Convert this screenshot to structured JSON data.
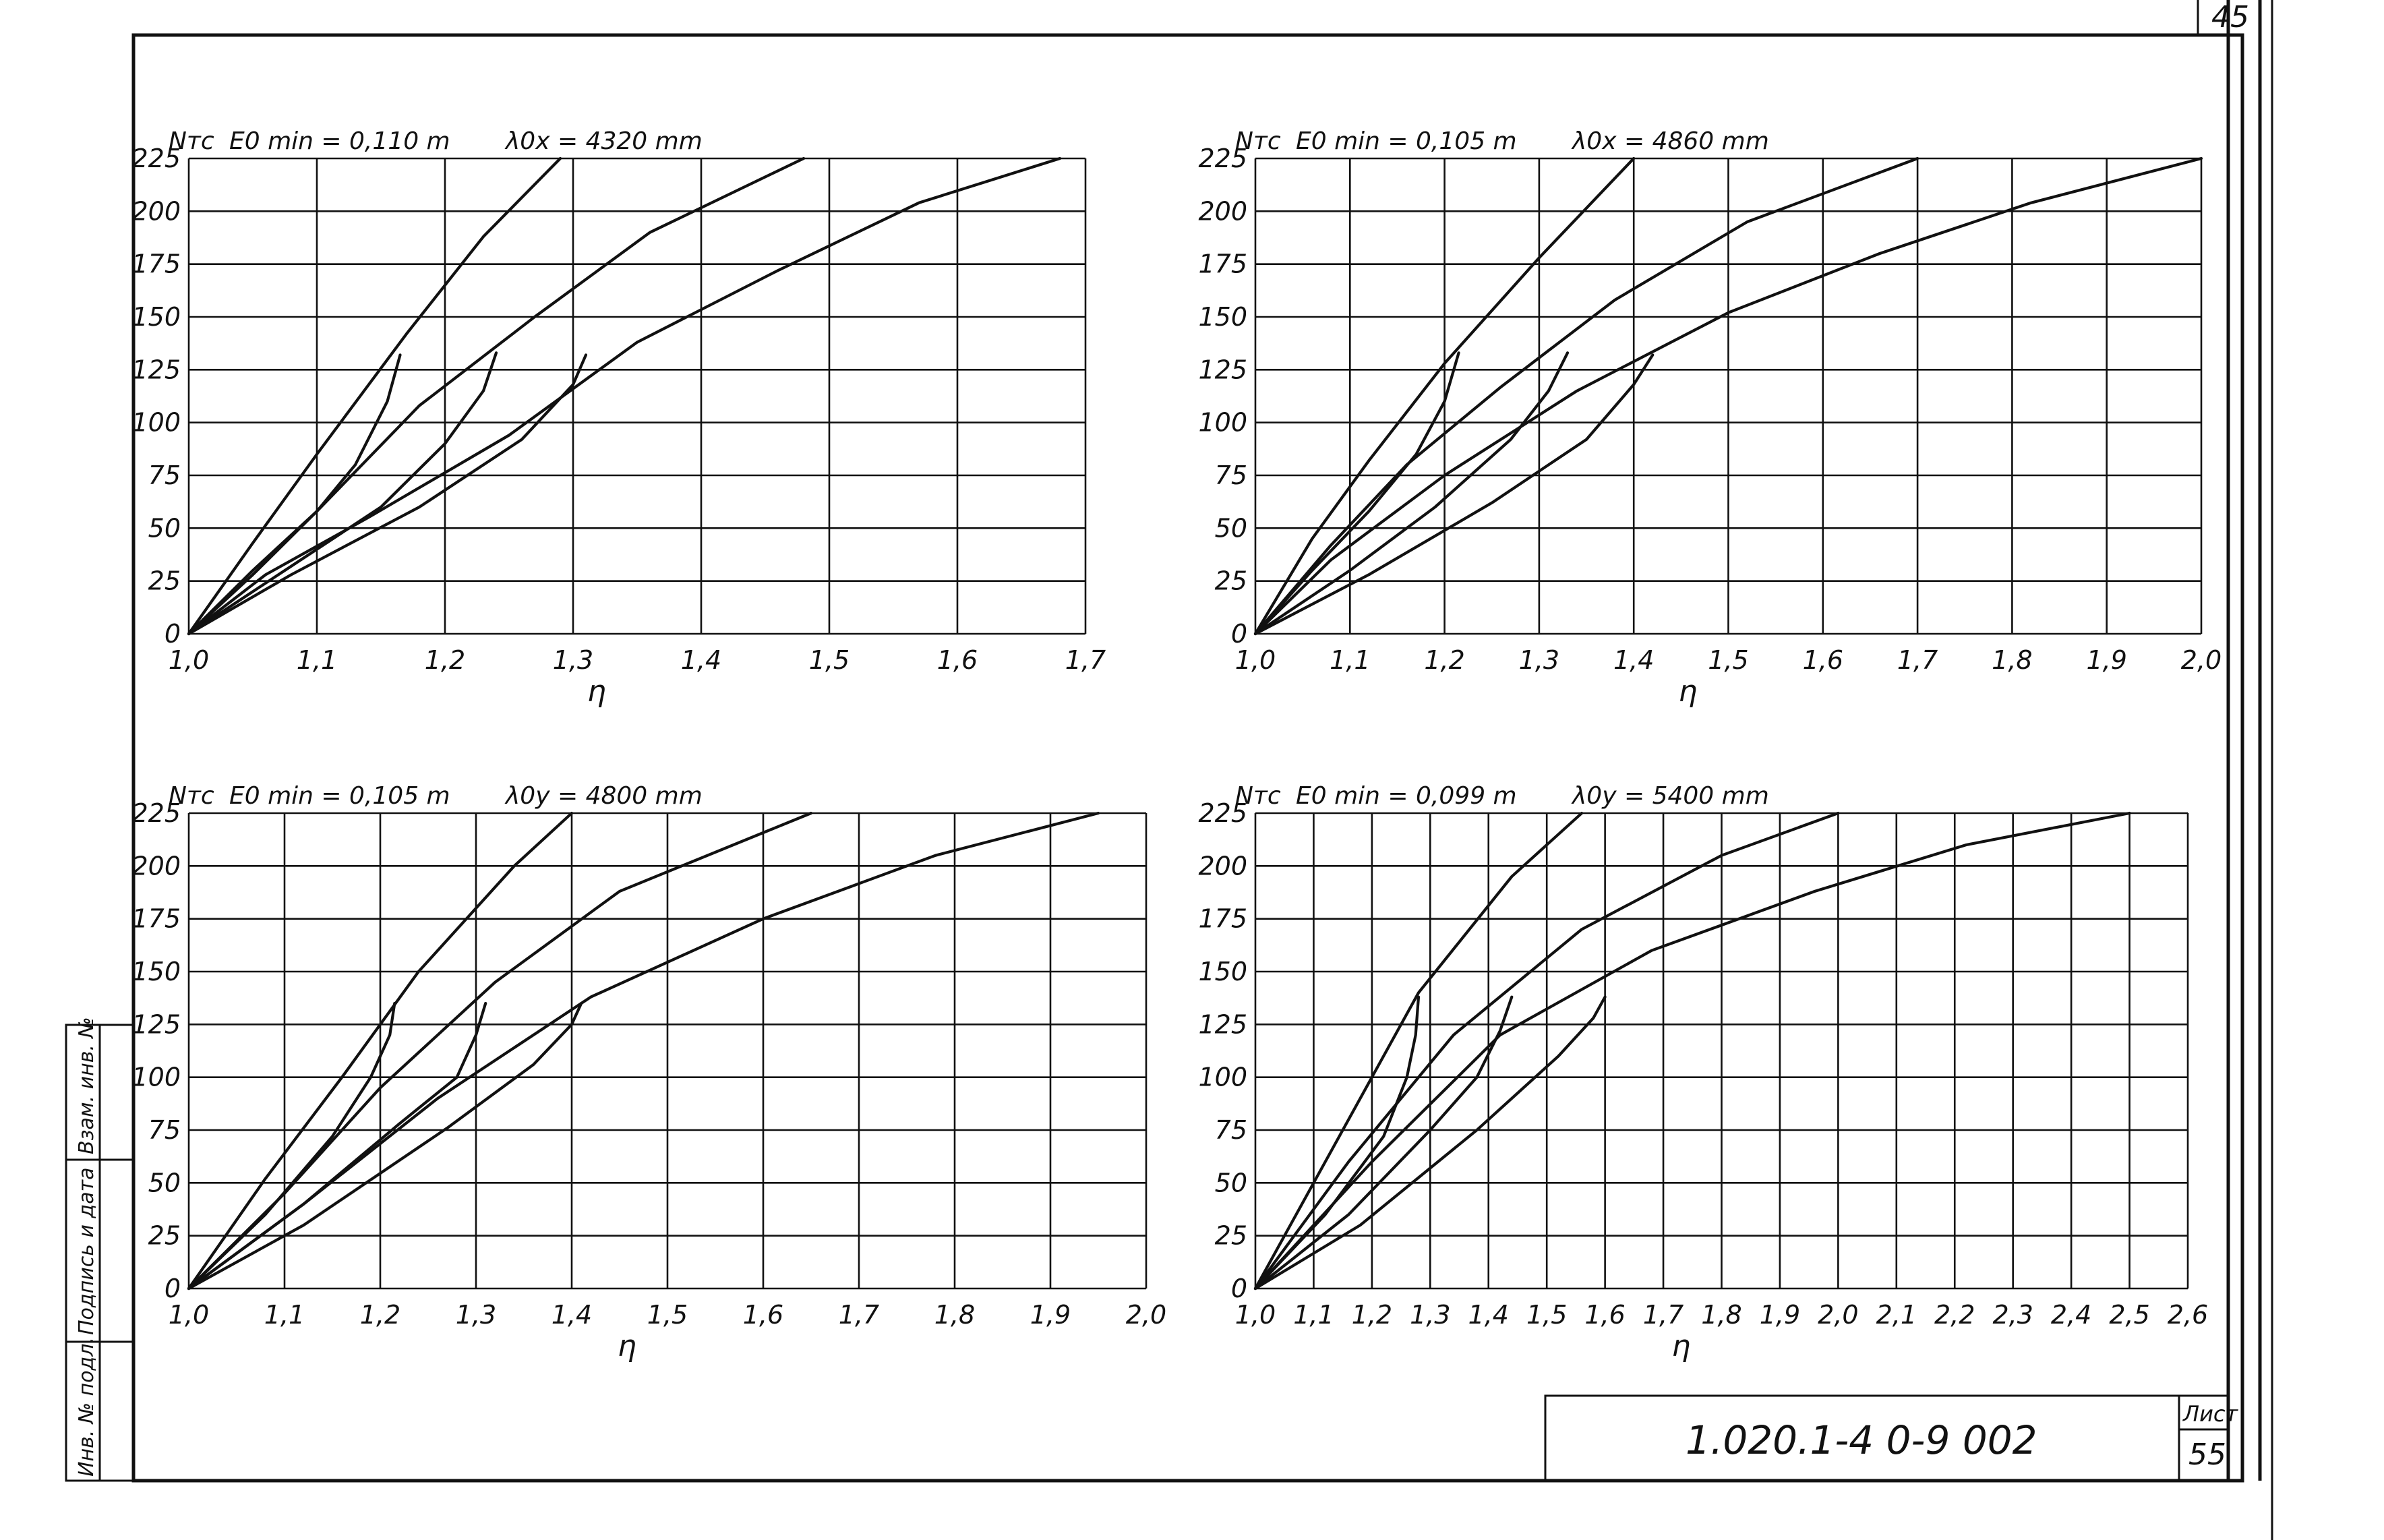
{
  "drawing": {
    "code": "1.020.1-4 0-9 002",
    "sheet_label": "Лист",
    "sheet_number": "55",
    "corner_number": "45",
    "side_stamp": [
      "Инв. № подл.",
      "Подпись и дата",
      "Взам. инв. №"
    ]
  },
  "chart_data": [
    {
      "type": "line",
      "y_title": "Nтс",
      "ecc_label": "E0 min = 0,110 m",
      "len_label": "λ0x = 4320 mm",
      "xlabel": "η",
      "xlim": [
        1.0,
        1.7
      ],
      "ylim": [
        0,
        225
      ],
      "x_ticks": [
        "1,0",
        "1,1",
        "1,2",
        "1,3",
        "1,4",
        "1,5",
        "1,6",
        "1,7"
      ],
      "y_ticks": [
        "0",
        "25",
        "50",
        "75",
        "100",
        "125",
        "150",
        "175",
        "200",
        "225"
      ],
      "grid": true,
      "series": [
        {
          "x": [
            1.0,
            1.05,
            1.1,
            1.17,
            1.23,
            1.29
          ],
          "y": [
            0,
            43,
            85,
            142,
            188,
            225
          ]
        },
        {
          "x": [
            1.0,
            1.05,
            1.1,
            1.18,
            1.27,
            1.36,
            1.48
          ],
          "y": [
            0,
            30,
            58,
            108,
            150,
            190,
            225
          ]
        },
        {
          "x": [
            1.0,
            1.06,
            1.14,
            1.25,
            1.35,
            1.46,
            1.57,
            1.68
          ],
          "y": [
            0,
            28,
            55,
            94,
            138,
            172,
            204,
            225
          ]
        },
        {
          "x": [
            1.0,
            1.05,
            1.1,
            1.13,
            1.155,
            1.165
          ],
          "y": [
            0,
            28,
            58,
            80,
            110,
            132
          ]
        },
        {
          "x": [
            1.0,
            1.07,
            1.15,
            1.2,
            1.23,
            1.24
          ],
          "y": [
            0,
            28,
            60,
            90,
            115,
            133
          ]
        },
        {
          "x": [
            1.0,
            1.08,
            1.18,
            1.26,
            1.3,
            1.31
          ],
          "y": [
            0,
            28,
            60,
            92,
            118,
            132
          ]
        }
      ]
    },
    {
      "type": "line",
      "y_title": "Nтс",
      "ecc_label": "E0 min = 0,105 m",
      "len_label": "λ0x = 4860 mm",
      "xlabel": "η",
      "xlim": [
        1.0,
        2.0
      ],
      "ylim": [
        0,
        225
      ],
      "x_ticks": [
        "1,0",
        "1,1",
        "1,2",
        "1,3",
        "1,4",
        "1,5",
        "1,6",
        "1,7",
        "1,8",
        "1,9",
        "2,0"
      ],
      "y_ticks": [
        "0",
        "25",
        "50",
        "75",
        "100",
        "125",
        "150",
        "175",
        "200",
        "225"
      ],
      "grid": true,
      "series": [
        {
          "x": [
            1.0,
            1.06,
            1.12,
            1.2,
            1.3,
            1.4
          ],
          "y": [
            0,
            45,
            82,
            128,
            178,
            225
          ]
        },
        {
          "x": [
            1.0,
            1.08,
            1.16,
            1.26,
            1.38,
            1.52,
            1.7
          ],
          "y": [
            0,
            42,
            80,
            117,
            158,
            195,
            225
          ]
        },
        {
          "x": [
            1.0,
            1.08,
            1.2,
            1.34,
            1.5,
            1.66,
            1.82,
            2.0
          ],
          "y": [
            0,
            35,
            75,
            115,
            152,
            180,
            204,
            225
          ]
        },
        {
          "x": [
            1.0,
            1.06,
            1.12,
            1.17,
            1.2,
            1.215
          ],
          "y": [
            0,
            30,
            58,
            85,
            110,
            133
          ]
        },
        {
          "x": [
            1.0,
            1.1,
            1.19,
            1.27,
            1.31,
            1.33
          ],
          "y": [
            0,
            30,
            60,
            92,
            115,
            133
          ]
        },
        {
          "x": [
            1.0,
            1.12,
            1.25,
            1.35,
            1.4,
            1.42
          ],
          "y": [
            0,
            28,
            62,
            92,
            118,
            132
          ]
        }
      ]
    },
    {
      "type": "line",
      "y_title": "Nтс",
      "ecc_label": "E0 min = 0,105 m",
      "len_label": "λ0y = 4800 mm",
      "xlabel": "η",
      "xlim": [
        1.0,
        2.0
      ],
      "ylim": [
        0,
        225
      ],
      "x_ticks": [
        "1,0",
        "1,1",
        "1,2",
        "1,3",
        "1,4",
        "1,5",
        "1,6",
        "1,7",
        "1,8",
        "1,9",
        "2,0"
      ],
      "y_ticks": [
        "0",
        "25",
        "50",
        "75",
        "100",
        "125",
        "150",
        "175",
        "200",
        "225"
      ],
      "grid": true,
      "series": [
        {
          "x": [
            1.0,
            1.08,
            1.16,
            1.24,
            1.34,
            1.4
          ],
          "y": [
            0,
            52,
            100,
            150,
            200,
            225
          ]
        },
        {
          "x": [
            1.0,
            1.1,
            1.2,
            1.32,
            1.45,
            1.65
          ],
          "y": [
            0,
            45,
            95,
            145,
            188,
            225
          ]
        },
        {
          "x": [
            1.0,
            1.12,
            1.26,
            1.42,
            1.6,
            1.78,
            1.95
          ],
          "y": [
            0,
            40,
            90,
            138,
            175,
            205,
            225
          ]
        },
        {
          "x": [
            1.0,
            1.08,
            1.15,
            1.19,
            1.21,
            1.215
          ],
          "y": [
            0,
            35,
            72,
            100,
            120,
            135
          ]
        },
        {
          "x": [
            1.0,
            1.12,
            1.22,
            1.28,
            1.3,
            1.31
          ],
          "y": [
            0,
            40,
            78,
            100,
            120,
            135
          ]
        },
        {
          "x": [
            1.0,
            1.12,
            1.27,
            1.36,
            1.4,
            1.41
          ],
          "y": [
            0,
            30,
            76,
            106,
            125,
            135
          ]
        }
      ]
    },
    {
      "type": "line",
      "y_title": "Nтс",
      "ecc_label": "E0 min = 0,099 m",
      "len_label": "λ0y = 5400 mm",
      "xlabel": "η",
      "xlim": [
        1.0,
        2.6
      ],
      "ylim": [
        0,
        225
      ],
      "x_ticks": [
        "1,0",
        "1,1",
        "1,2",
        "1,3",
        "1,4",
        "1,5",
        "1,6",
        "1,7",
        "1,8",
        "1,9",
        "2,0",
        "2,1",
        "2,2",
        "2,3",
        "2,4",
        "2,5",
        "2,6"
      ],
      "y_ticks": [
        "0",
        "25",
        "50",
        "75",
        "100",
        "125",
        "150",
        "175",
        "200",
        "225"
      ],
      "grid": true,
      "series": [
        {
          "x": [
            1.0,
            1.12,
            1.28,
            1.44,
            1.56
          ],
          "y": [
            0,
            60,
            140,
            195,
            225
          ]
        },
        {
          "x": [
            1.0,
            1.16,
            1.34,
            1.56,
            1.8,
            2.0
          ],
          "y": [
            0,
            60,
            120,
            170,
            205,
            225
          ]
        },
        {
          "x": [
            1.0,
            1.2,
            1.42,
            1.68,
            1.96,
            2.22,
            2.5
          ],
          "y": [
            0,
            60,
            120,
            160,
            188,
            210,
            225
          ]
        },
        {
          "x": [
            1.0,
            1.12,
            1.22,
            1.26,
            1.275,
            1.28
          ],
          "y": [
            0,
            35,
            72,
            100,
            120,
            138
          ]
        },
        {
          "x": [
            1.0,
            1.16,
            1.3,
            1.38,
            1.42,
            1.44
          ],
          "y": [
            0,
            35,
            75,
            100,
            122,
            138
          ]
        },
        {
          "x": [
            1.0,
            1.18,
            1.38,
            1.52,
            1.58,
            1.6
          ],
          "y": [
            0,
            30,
            75,
            110,
            128,
            138
          ]
        }
      ]
    }
  ]
}
